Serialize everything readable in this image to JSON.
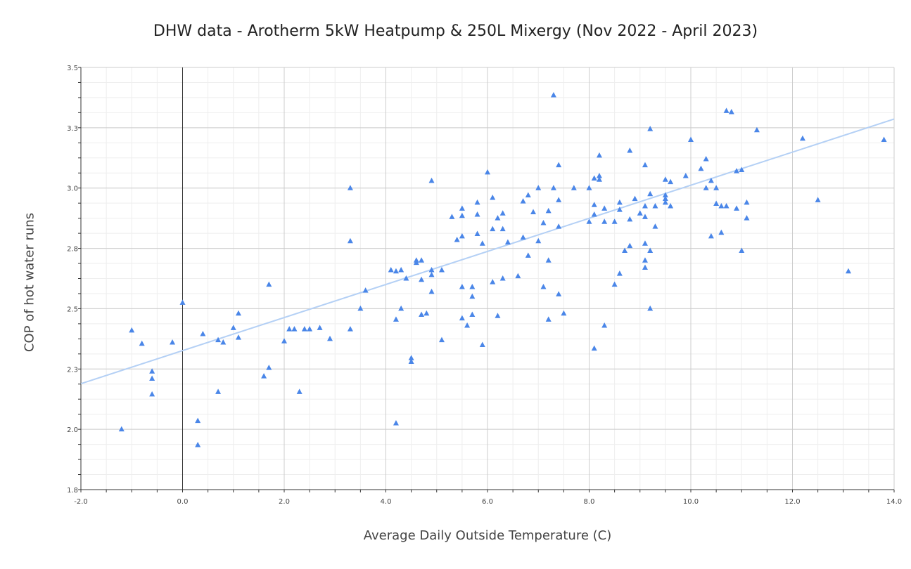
{
  "chart_data": {
    "type": "scatter",
    "title": "DHW data - Arotherm 5kW Heatpump & 250L Mixergy (Nov 2022 - April 2023)",
    "xlabel": "Average Daily Outside Temperature (C)",
    "ylabel": "COP of hot water runs",
    "xlim": [
      -2.0,
      14.0
    ],
    "ylim": [
      1.75,
      3.5
    ],
    "x_ticks": [
      "-2.0",
      "0.0",
      "2.0",
      "4.0",
      "6.0",
      "8.0",
      "10.0",
      "12.0",
      "14.0"
    ],
    "y_ticks": [
      {
        "value": 1.75,
        "label": "1.8"
      },
      {
        "value": 2.0,
        "label": "2.0"
      },
      {
        "value": 2.25,
        "label": "2.3"
      },
      {
        "value": 2.5,
        "label": "2.5"
      },
      {
        "value": 2.75,
        "label": "2.8"
      },
      {
        "value": 3.0,
        "label": "3.0"
      },
      {
        "value": 3.25,
        "label": "3.3"
      },
      {
        "value": 3.5,
        "label": "3.5"
      }
    ],
    "grid": true,
    "marker": "triangle",
    "point_color": "#4a86e8",
    "trendline_color": "#b4d0f5",
    "trendline": {
      "x": [
        -2.0,
        14.0
      ],
      "y": [
        2.189,
        3.286
      ]
    },
    "points": [
      [
        -1.2,
        2.0
      ],
      [
        -1.0,
        2.41
      ],
      [
        -0.8,
        2.355
      ],
      [
        -0.6,
        2.24
      ],
      [
        -0.6,
        2.21
      ],
      [
        -0.6,
        2.145
      ],
      [
        -0.2,
        2.36
      ],
      [
        0.0,
        2.525
      ],
      [
        0.3,
        2.035
      ],
      [
        0.3,
        1.935
      ],
      [
        0.4,
        2.395
      ],
      [
        0.7,
        2.37
      ],
      [
        0.7,
        2.155
      ],
      [
        0.8,
        2.36
      ],
      [
        1.0,
        2.42
      ],
      [
        1.1,
        2.48
      ],
      [
        1.1,
        2.38
      ],
      [
        1.6,
        2.22
      ],
      [
        1.7,
        2.6
      ],
      [
        1.7,
        2.255
      ],
      [
        2.0,
        2.365
      ],
      [
        2.1,
        2.415
      ],
      [
        2.2,
        2.415
      ],
      [
        2.3,
        2.155
      ],
      [
        2.4,
        2.415
      ],
      [
        2.5,
        2.415
      ],
      [
        2.7,
        2.42
      ],
      [
        2.9,
        2.375
      ],
      [
        3.3,
        3.0
      ],
      [
        3.3,
        2.78
      ],
      [
        3.3,
        2.415
      ],
      [
        3.5,
        2.5
      ],
      [
        3.6,
        2.575
      ],
      [
        4.1,
        2.66
      ],
      [
        4.2,
        2.655
      ],
      [
        4.2,
        2.455
      ],
      [
        4.2,
        2.025
      ],
      [
        4.3,
        2.66
      ],
      [
        4.3,
        2.5
      ],
      [
        4.4,
        2.625
      ],
      [
        4.5,
        2.295
      ],
      [
        4.5,
        2.28
      ],
      [
        4.6,
        2.7
      ],
      [
        4.6,
        2.69
      ],
      [
        4.7,
        2.7
      ],
      [
        4.7,
        2.62
      ],
      [
        4.7,
        2.475
      ],
      [
        4.8,
        2.48
      ],
      [
        4.9,
        3.03
      ],
      [
        4.9,
        2.66
      ],
      [
        4.9,
        2.64
      ],
      [
        4.9,
        2.57
      ],
      [
        5.1,
        2.66
      ],
      [
        5.1,
        2.37
      ],
      [
        5.3,
        2.88
      ],
      [
        5.4,
        2.785
      ],
      [
        5.5,
        2.915
      ],
      [
        5.5,
        2.885
      ],
      [
        5.5,
        2.8
      ],
      [
        5.5,
        2.59
      ],
      [
        5.5,
        2.46
      ],
      [
        5.6,
        2.43
      ],
      [
        5.7,
        2.59
      ],
      [
        5.7,
        2.55
      ],
      [
        5.7,
        2.475
      ],
      [
        5.8,
        2.94
      ],
      [
        5.8,
        2.89
      ],
      [
        5.8,
        2.81
      ],
      [
        5.9,
        2.77
      ],
      [
        5.9,
        2.35
      ],
      [
        6.0,
        3.065
      ],
      [
        6.1,
        2.96
      ],
      [
        6.1,
        2.83
      ],
      [
        6.1,
        2.61
      ],
      [
        6.2,
        2.875
      ],
      [
        6.2,
        2.47
      ],
      [
        6.3,
        2.895
      ],
      [
        6.3,
        2.83
      ],
      [
        6.3,
        2.625
      ],
      [
        6.4,
        2.775
      ],
      [
        6.6,
        2.635
      ],
      [
        6.7,
        2.945
      ],
      [
        6.7,
        2.795
      ],
      [
        6.8,
        2.97
      ],
      [
        6.8,
        2.72
      ],
      [
        6.9,
        2.9
      ],
      [
        7.0,
        3.0
      ],
      [
        7.0,
        2.78
      ],
      [
        7.1,
        2.855
      ],
      [
        7.1,
        2.59
      ],
      [
        7.2,
        2.905
      ],
      [
        7.2,
        2.7
      ],
      [
        7.2,
        2.455
      ],
      [
        7.3,
        3.385
      ],
      [
        7.3,
        3.0
      ],
      [
        7.4,
        3.095
      ],
      [
        7.4,
        2.95
      ],
      [
        7.4,
        2.84
      ],
      [
        7.4,
        2.56
      ],
      [
        7.5,
        2.48
      ],
      [
        7.7,
        3.0
      ],
      [
        8.0,
        3.0
      ],
      [
        8.0,
        2.86
      ],
      [
        8.1,
        3.04
      ],
      [
        8.1,
        2.93
      ],
      [
        8.1,
        2.89
      ],
      [
        8.1,
        2.335
      ],
      [
        8.2,
        3.135
      ],
      [
        8.2,
        3.05
      ],
      [
        8.2,
        3.035
      ],
      [
        8.3,
        2.915
      ],
      [
        8.3,
        2.86
      ],
      [
        8.3,
        2.43
      ],
      [
        8.5,
        2.86
      ],
      [
        8.5,
        2.6
      ],
      [
        8.6,
        2.94
      ],
      [
        8.6,
        2.91
      ],
      [
        8.6,
        2.645
      ],
      [
        8.7,
        2.74
      ],
      [
        8.8,
        3.155
      ],
      [
        8.8,
        2.87
      ],
      [
        8.8,
        2.76
      ],
      [
        8.9,
        2.955
      ],
      [
        9.0,
        2.895
      ],
      [
        9.1,
        3.095
      ],
      [
        9.1,
        2.925
      ],
      [
        9.1,
        2.88
      ],
      [
        9.1,
        2.77
      ],
      [
        9.1,
        2.7
      ],
      [
        9.1,
        2.67
      ],
      [
        9.2,
        3.245
      ],
      [
        9.2,
        2.975
      ],
      [
        9.2,
        2.74
      ],
      [
        9.2,
        2.5
      ],
      [
        9.3,
        2.925
      ],
      [
        9.3,
        2.84
      ],
      [
        9.5,
        3.035
      ],
      [
        9.5,
        2.97
      ],
      [
        9.5,
        2.955
      ],
      [
        9.5,
        2.94
      ],
      [
        9.6,
        3.025
      ],
      [
        9.6,
        2.925
      ],
      [
        9.9,
        3.05
      ],
      [
        10.0,
        3.2
      ],
      [
        10.2,
        3.08
      ],
      [
        10.3,
        3.12
      ],
      [
        10.3,
        3.0
      ],
      [
        10.4,
        3.03
      ],
      [
        10.4,
        2.8
      ],
      [
        10.5,
        3.0
      ],
      [
        10.5,
        2.935
      ],
      [
        10.6,
        2.925
      ],
      [
        10.6,
        2.815
      ],
      [
        10.7,
        3.32
      ],
      [
        10.7,
        2.925
      ],
      [
        10.8,
        3.315
      ],
      [
        10.9,
        3.07
      ],
      [
        10.9,
        2.915
      ],
      [
        11.0,
        3.075
      ],
      [
        11.0,
        2.74
      ],
      [
        11.1,
        2.94
      ],
      [
        11.1,
        2.875
      ],
      [
        11.3,
        3.24
      ],
      [
        12.2,
        3.205
      ],
      [
        12.5,
        2.95
      ],
      [
        13.1,
        2.655
      ],
      [
        13.8,
        3.2
      ]
    ]
  }
}
